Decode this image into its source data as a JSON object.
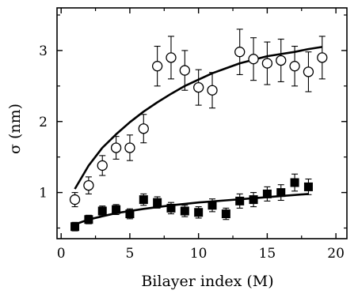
{
  "chart_data": {
    "type": "scatter",
    "xlabel": "Bilayer index (M)",
    "ylabel": "σ (nm)",
    "xlim": [
      -0.3,
      20.8
    ],
    "ylim": [
      0.35,
      3.6
    ],
    "x_ticks": [
      0,
      5,
      10,
      15,
      20
    ],
    "x_tick_labels": [
      "0",
      "5",
      "10",
      "15",
      "20"
    ],
    "y_ticks": [
      1,
      2,
      3
    ],
    "y_tick_labels": [
      "1",
      "2",
      "3"
    ],
    "grid": false,
    "legend": "none",
    "series": [
      {
        "marker": "open-circle",
        "x": [
          1,
          2,
          3,
          4,
          5,
          6,
          7,
          8,
          9,
          10,
          11,
          13,
          14,
          15,
          16,
          17,
          18,
          19
        ],
        "y": [
          0.9,
          1.1,
          1.38,
          1.63,
          1.63,
          1.9,
          2.78,
          2.9,
          2.72,
          2.48,
          2.44,
          2.98,
          2.88,
          2.82,
          2.86,
          2.78,
          2.7,
          2.9
        ],
        "error": [
          0.1,
          0.12,
          0.14,
          0.16,
          0.18,
          0.2,
          0.28,
          0.3,
          0.28,
          0.25,
          0.25,
          0.32,
          0.3,
          0.3,
          0.3,
          0.28,
          0.28,
          0.3
        ]
      },
      {
        "marker": "filled-square",
        "x": [
          1,
          2,
          3,
          4,
          5,
          6,
          7,
          8,
          9,
          10,
          11,
          12,
          13,
          14,
          15,
          16,
          17,
          18
        ],
        "y": [
          0.52,
          0.62,
          0.74,
          0.76,
          0.7,
          0.9,
          0.86,
          0.78,
          0.74,
          0.72,
          0.82,
          0.7,
          0.88,
          0.9,
          0.98,
          1.0,
          1.14,
          1.08
        ],
        "error": [
          0.06,
          0.06,
          0.07,
          0.07,
          0.07,
          0.08,
          0.08,
          0.08,
          0.08,
          0.08,
          0.09,
          0.08,
          0.1,
          0.1,
          0.1,
          0.11,
          0.12,
          0.11
        ]
      }
    ],
    "fit_curves": [
      {
        "x": [
          1,
          2,
          3,
          4,
          5,
          6,
          7,
          8,
          9,
          10,
          11,
          12,
          13,
          14,
          15,
          16,
          17,
          18,
          19
        ],
        "y": [
          1.05,
          1.38,
          1.63,
          1.82,
          1.99,
          2.14,
          2.27,
          2.39,
          2.5,
          2.59,
          2.68,
          2.75,
          2.82,
          2.87,
          2.92,
          2.95,
          2.98,
          3.02,
          3.05
        ]
      },
      {
        "x": [
          1,
          2,
          4,
          6,
          8,
          10,
          12,
          14,
          16,
          18
        ],
        "y": [
          0.55,
          0.62,
          0.71,
          0.77,
          0.82,
          0.86,
          0.89,
          0.92,
          0.95,
          0.98
        ]
      }
    ]
  }
}
